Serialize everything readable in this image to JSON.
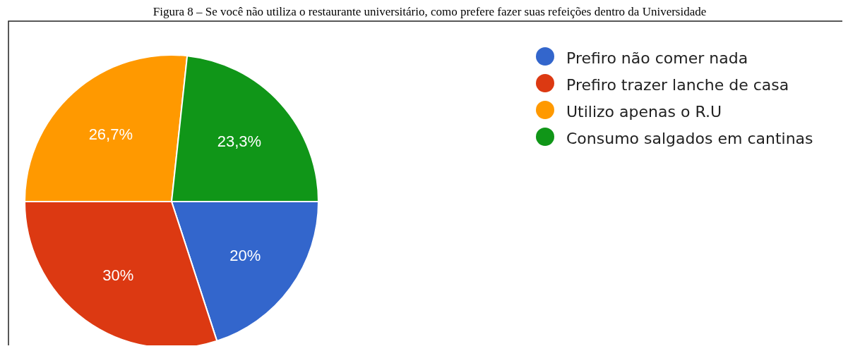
{
  "chart_data": {
    "type": "pie",
    "title": "Figura 8 – Se você não utiliza o restaurante universitário, como prefere fazer suas refeições dentro da Universidade",
    "categories": [
      "Prefiro não comer nada",
      "Prefiro trazer lanche de casa",
      "Utilizo apenas o R.U",
      "Consumo salgados em cantinas"
    ],
    "values": [
      20,
      30,
      26.7,
      23.3
    ],
    "colors": [
      "#3366cc",
      "#dc3912",
      "#ff9900",
      "#109618"
    ],
    "value_labels": [
      "20%",
      "30%",
      "26,7%",
      "23,3%"
    ],
    "legend": "right"
  }
}
